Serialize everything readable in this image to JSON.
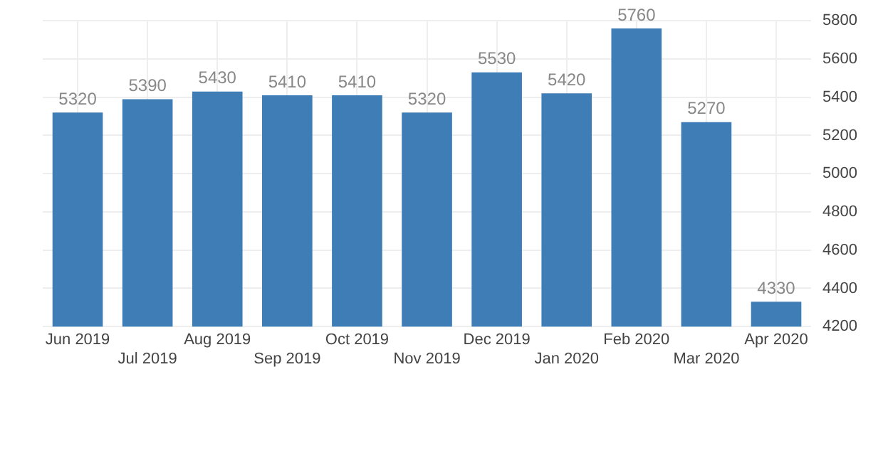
{
  "chart_data": {
    "type": "bar",
    "categories": [
      "Jun 2019",
      "Jul 2019",
      "Aug 2019",
      "Sep 2019",
      "Oct 2019",
      "Nov 2019",
      "Dec 2019",
      "Jan 2020",
      "Feb 2020",
      "Mar 2020",
      "Apr 2020"
    ],
    "values": [
      5320,
      5390,
      5430,
      5410,
      5410,
      5320,
      5530,
      5420,
      5760,
      5270,
      4330
    ],
    "color": "#3f7db6",
    "ylim": [
      4200,
      5800
    ],
    "yticks": [
      4200,
      4400,
      4600,
      4800,
      5000,
      5200,
      5400,
      5600,
      5800
    ],
    "data_labels": true,
    "grid": true,
    "legend": false
  }
}
